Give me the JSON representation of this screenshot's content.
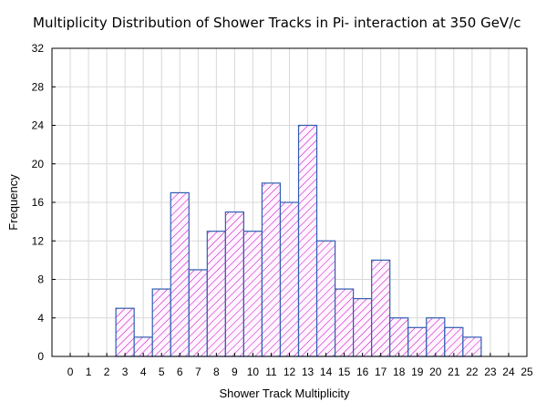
{
  "chart_data": {
    "type": "bar",
    "title": "Multiplicity Distribution of Shower Tracks in Pi- interaction at 350 GeV/c",
    "xlabel": "Shower Track Multiplicity",
    "ylabel": "Frequency",
    "x_ticks": [
      "0",
      "1",
      "2",
      "3",
      "4",
      "5",
      "6",
      "7",
      "8",
      "9",
      "10",
      "11",
      "12",
      "13",
      "14",
      "15",
      "16",
      "17",
      "18",
      "19",
      "20",
      "21",
      "22",
      "23",
      "24",
      "25"
    ],
    "y_ticks": [
      "0",
      "4",
      "8",
      "12",
      "16",
      "20",
      "24",
      "28",
      "32"
    ],
    "xlim": [
      -1,
      25
    ],
    "ylim": [
      0,
      32
    ],
    "grid": true,
    "categories": [
      "3",
      "4",
      "5",
      "6",
      "7",
      "8",
      "9",
      "10",
      "11",
      "12",
      "13",
      "14",
      "15",
      "16",
      "17",
      "18",
      "19",
      "20",
      "21",
      "22"
    ],
    "values": [
      5,
      2,
      7,
      17,
      9,
      13,
      15,
      13,
      18,
      16,
      24,
      12,
      7,
      6,
      10,
      4,
      3,
      4,
      3,
      2
    ],
    "colors": {
      "bar_fill": "#fff4ff",
      "hatch": "#c000c0",
      "bar_edge": "#2f5fb0"
    }
  }
}
